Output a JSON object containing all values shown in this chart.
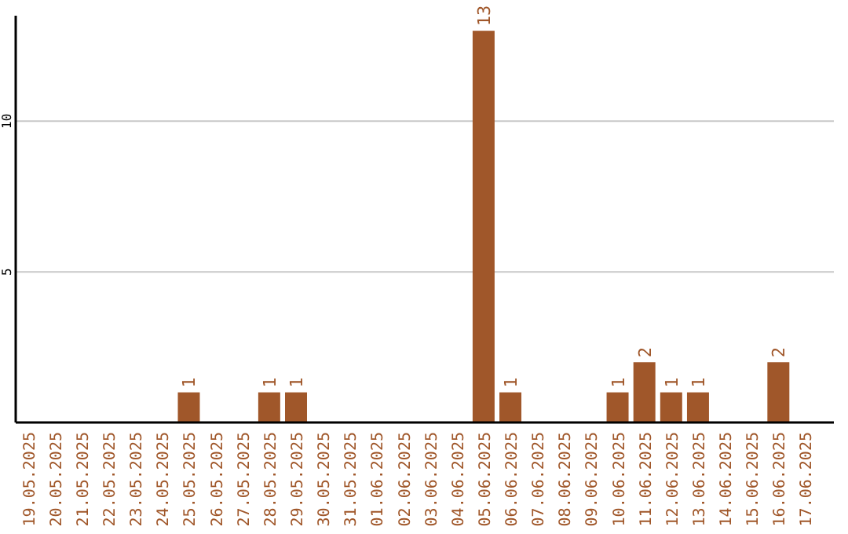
{
  "chart_data": {
    "type": "bar",
    "categories": [
      "19.05.2025",
      "20.05.2025",
      "21.05.2025",
      "22.05.2025",
      "23.05.2025",
      "24.05.2025",
      "25.05.2025",
      "26.05.2025",
      "27.05.2025",
      "28.05.2025",
      "29.05.2025",
      "30.05.2025",
      "31.05.2025",
      "01.06.2025",
      "02.06.2025",
      "03.06.2025",
      "04.06.2025",
      "05.06.2025",
      "06.06.2025",
      "07.06.2025",
      "08.06.2025",
      "09.06.2025",
      "10.06.2025",
      "11.06.2025",
      "12.06.2025",
      "13.06.2025",
      "14.06.2025",
      "15.06.2025",
      "16.06.2025",
      "17.06.2025"
    ],
    "values": [
      0,
      0,
      0,
      0,
      0,
      0,
      1,
      0,
      0,
      1,
      1,
      0,
      0,
      0,
      0,
      0,
      0,
      13,
      1,
      0,
      0,
      0,
      1,
      2,
      1,
      1,
      0,
      0,
      2,
      0
    ],
    "value_labels": [
      null,
      null,
      null,
      null,
      null,
      null,
      "1",
      null,
      null,
      "1",
      "1",
      null,
      null,
      null,
      null,
      null,
      null,
      "13",
      "1",
      null,
      null,
      null,
      "1",
      "2",
      "1",
      "1",
      null,
      null,
      "2",
      null
    ],
    "color": "#a0572a",
    "ylim": [
      0,
      13.5
    ],
    "yticks": [
      5,
      10
    ],
    "grid": "y"
  }
}
